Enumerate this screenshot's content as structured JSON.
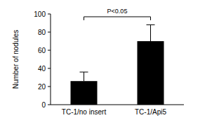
{
  "chart_data": {
    "type": "bar",
    "categories": [
      "TC-1/no insert",
      "TC-1/Api5"
    ],
    "values": [
      26,
      70
    ],
    "errors": [
      10,
      18
    ],
    "color": "#000000",
    "ylim": [
      0,
      100
    ],
    "yticks": [
      0,
      20,
      40,
      60,
      80,
      100
    ],
    "y_label": "Number of nodules",
    "annotation": "P<0.05"
  }
}
